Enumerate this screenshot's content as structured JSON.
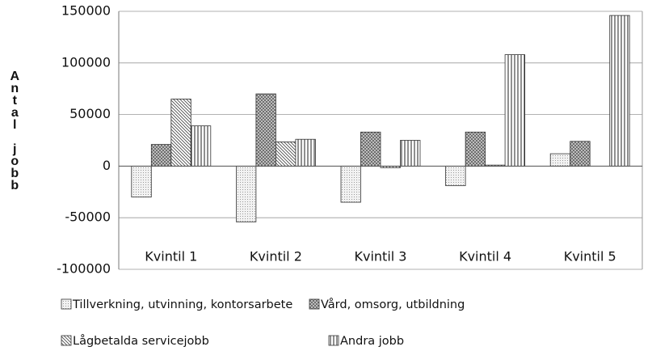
{
  "chart_data": {
    "type": "bar",
    "y_label": "Antal jobb",
    "categories": [
      "Kvintil 1",
      "Kvintil 2",
      "Kvintil 3",
      "Kvintil 4",
      "Kvintil 5"
    ],
    "series": [
      {
        "name": "Tillverkning, utvinning, kontorsarbete",
        "color": "#999999",
        "values": [
          -30000,
          -54000,
          -35000,
          -19000,
          12000
        ]
      },
      {
        "name": "Vård, omsorg, utbildning",
        "color": "#666666",
        "values": [
          21000,
          70000,
          33000,
          33000,
          24000
        ]
      },
      {
        "name": "Lågbetalda servicejobb",
        "color": "#444444",
        "values": [
          65000,
          23500,
          -1500,
          1000,
          0
        ]
      },
      {
        "name": "Andra jobb",
        "color": "#222222",
        "values": [
          39000,
          26000,
          25000,
          108000,
          146000
        ]
      }
    ],
    "ylim": [
      -100000,
      150000
    ],
    "yticks": [
      -100000,
      -50000,
      0,
      50000,
      100000,
      150000
    ],
    "grid": true
  }
}
